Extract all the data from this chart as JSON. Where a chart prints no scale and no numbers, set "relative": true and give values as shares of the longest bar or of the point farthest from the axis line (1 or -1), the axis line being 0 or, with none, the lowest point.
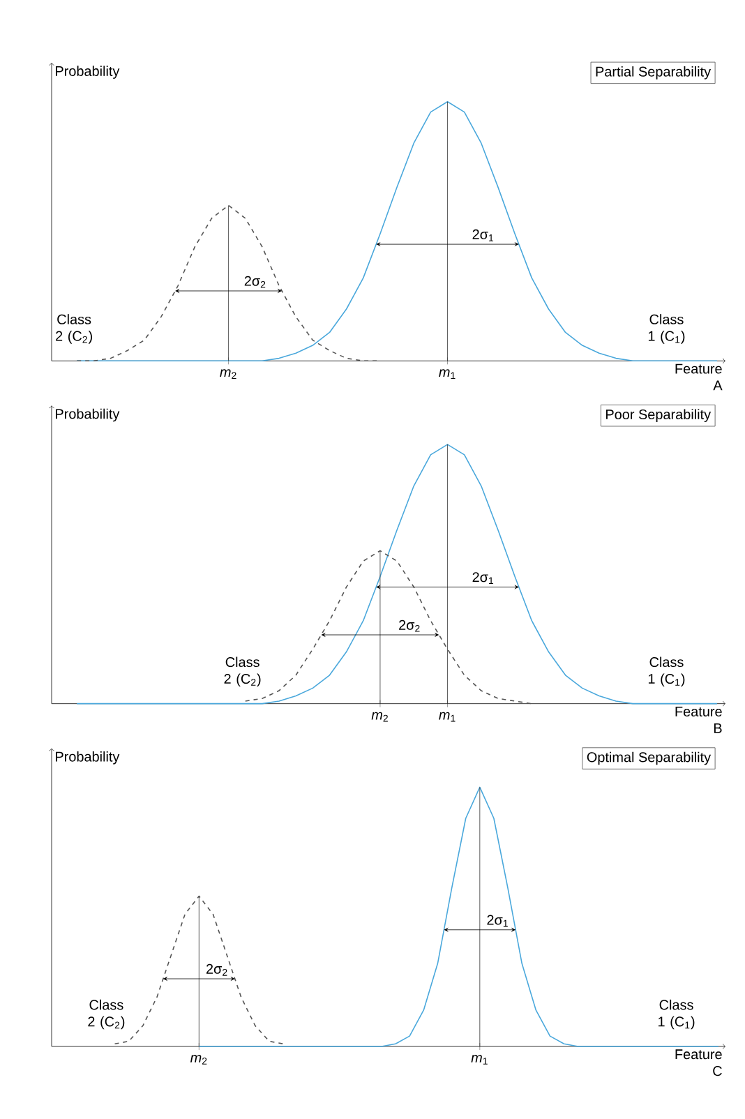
{
  "chart_data": [
    {
      "type": "line",
      "title": "Partial Separability",
      "ylabel": "Probability",
      "xlabel": "Feature A",
      "relative": true,
      "categories": [
        null,
        null,
        null,
        null,
        null,
        null,
        null,
        null,
        null,
        null,
        "*m*$_{2}$",
        null,
        null,
        null,
        null,
        null,
        null,
        null,
        null,
        null,
        null,
        null,
        null,
        "*m*$_{1}$",
        null,
        null,
        null,
        null,
        null,
        null,
        null,
        null,
        null,
        null,
        null,
        null,
        null,
        null,
        null,
        null
      ],
      "series": [
        {
          "name": "Class 1 (C$_{1}$)",
          "color": "#4aa8dc",
          "line_style": "solid",
          "values": [
            null,
            0,
            0,
            0,
            0,
            0,
            0,
            0,
            0,
            0,
            0,
            0,
            0,
            0.01,
            0.03,
            0.06,
            0.11,
            0.2,
            0.32,
            0.49,
            0.67,
            0.84,
            0.96,
            1,
            0.96,
            0.84,
            0.67,
            0.49,
            0.32,
            0.2,
            0.11,
            0.06,
            0.03,
            0.01,
            0,
            0,
            0,
            0,
            0,
            0
          ]
        },
        {
          "name": "Class 2 (C$_{2}$)",
          "color": "#555555",
          "line_style": "dashed",
          "values": [
            null,
            0,
            0,
            0.01,
            0.04,
            0.08,
            0.17,
            0.29,
            0.44,
            0.55,
            0.6,
            0.55,
            0.44,
            0.29,
            0.17,
            0.08,
            0.04,
            0.01,
            0,
            0,
            null,
            null,
            null,
            null,
            null,
            null,
            null,
            null,
            null,
            null,
            null,
            null,
            null,
            null,
            null,
            null,
            null,
            null,
            null,
            null
          ]
        }
      ],
      "annotations": [
        "2σ$_{1}$",
        "2σ$_{2}$"
      ]
    },
    {
      "type": "line",
      "title": "Poor Separability",
      "ylabel": "Probability",
      "xlabel": "Feature B",
      "relative": true,
      "categories": [
        null,
        null,
        null,
        null,
        null,
        null,
        null,
        null,
        null,
        null,
        null,
        null,
        null,
        null,
        null,
        null,
        null,
        null,
        null,
        "*m*$_{2}$",
        null,
        null,
        null,
        "*m*$_{1}$",
        null,
        null,
        null,
        null,
        null,
        null,
        null,
        null,
        null,
        null,
        null,
        null,
        null,
        null,
        null,
        null
      ],
      "series": [
        {
          "name": "Class 1 (C$_{1}$)",
          "color": "#4aa8dc",
          "line_style": "solid",
          "values": [
            null,
            0,
            0,
            0,
            0,
            0,
            0,
            0,
            0,
            0,
            0,
            0,
            0,
            0.01,
            0.03,
            0.06,
            0.11,
            0.2,
            0.32,
            0.49,
            0.67,
            0.84,
            0.96,
            1,
            0.96,
            0.84,
            0.67,
            0.49,
            0.32,
            0.2,
            0.11,
            0.06,
            0.03,
            0.01,
            0,
            0,
            0,
            0,
            0,
            0
          ]
        },
        {
          "name": "Class 2 (C$_{2}$)",
          "color": "#555555",
          "line_style": "dashed",
          "values": [
            null,
            null,
            null,
            null,
            null,
            null,
            null,
            null,
            null,
            null,
            null,
            0.01,
            0.02,
            0.05,
            0.11,
            0.21,
            0.32,
            0.45,
            0.55,
            0.59,
            0.55,
            0.45,
            0.32,
            0.21,
            0.11,
            0.05,
            0.02,
            0.01,
            0,
            null,
            null,
            null,
            null,
            null,
            null,
            null,
            null,
            null,
            null,
            null
          ]
        }
      ],
      "annotations": [
        "2σ$_{1}$",
        "2σ$_{2}$"
      ]
    },
    {
      "type": "line",
      "title": "Optimal Separability",
      "ylabel": "Probability",
      "xlabel": "Feature C",
      "relative": true,
      "categories": [
        null,
        null,
        null,
        null,
        null,
        null,
        null,
        null,
        null,
        null,
        "*m*$_{2}$",
        null,
        null,
        null,
        null,
        null,
        null,
        null,
        null,
        null,
        null,
        null,
        null,
        null,
        null,
        null,
        null,
        null,
        null,
        null,
        "*m*$_{1}$",
        null,
        null,
        null,
        null,
        null,
        null,
        null,
        null,
        null,
        null,
        null,
        null,
        null,
        null,
        null,
        null,
        null
      ],
      "series": [
        {
          "name": "Class 1 (C$_{1}$)",
          "color": "#4aa8dc",
          "line_style": "solid",
          "values": [
            null,
            null,
            null,
            null,
            null,
            null,
            null,
            null,
            null,
            null,
            0,
            0,
            0,
            0,
            0,
            0,
            0,
            0,
            0,
            0,
            0,
            0,
            0,
            0,
            0.01,
            0.04,
            0.14,
            0.32,
            0.61,
            0.88,
            1,
            0.88,
            0.61,
            0.32,
            0.14,
            0.04,
            0.01,
            0,
            0,
            0,
            0,
            0,
            0,
            0,
            0,
            0,
            0,
            0
          ]
        },
        {
          "name": "Class 2 (C$_{2}$)",
          "color": "#555555",
          "line_style": "dashed",
          "values": [
            null,
            null,
            null,
            null,
            0.01,
            0.02,
            0.08,
            0.19,
            0.35,
            0.51,
            0.58,
            0.51,
            0.35,
            0.19,
            0.08,
            0.02,
            0.01,
            null,
            null,
            null,
            null,
            null,
            null,
            null,
            null,
            null,
            null,
            null,
            null,
            null,
            null,
            null,
            null,
            null,
            null,
            null,
            null,
            null,
            null,
            null,
            null,
            null,
            null,
            null,
            null,
            null,
            null,
            null
          ]
        }
      ],
      "annotations": [
        "2σ$_{1}$",
        "2σ$_{2}$"
      ]
    }
  ]
}
